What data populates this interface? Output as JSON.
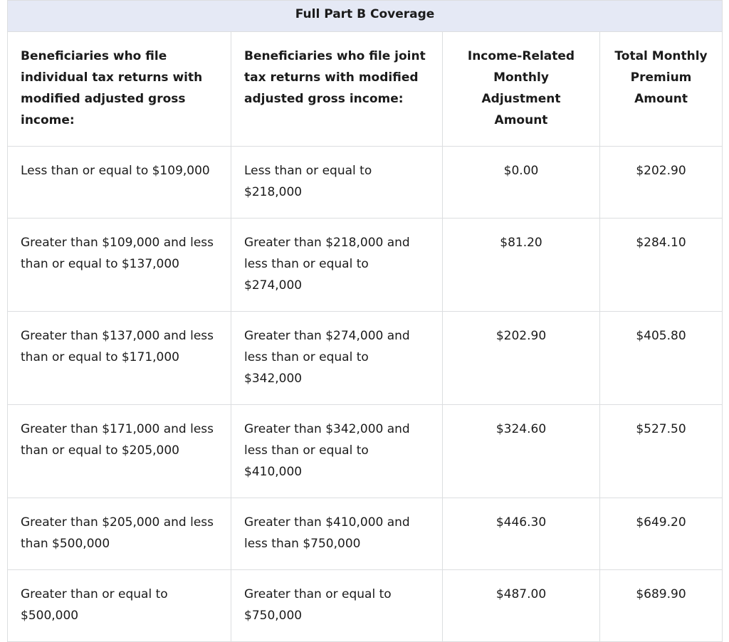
{
  "table": {
    "title": "Full Part B Coverage",
    "headers": [
      "Beneficiaries who file individual tax returns with modified adjusted gross income:",
      "Beneficiaries who file joint tax returns with modified adjusted gross income:",
      "Income-Related Monthly Adjustment Amount",
      "Total Monthly Premium Amount"
    ],
    "rows": [
      [
        "Less than or equal to $109,000",
        "Less than or equal to $218,000",
        "$0.00",
        "$202.90"
      ],
      [
        "Greater than $109,000 and less than or equal to $137,000",
        "Greater than $218,000 and less than or equal to $274,000",
        "$81.20",
        "$284.10"
      ],
      [
        "Greater than $137,000 and less than or equal to $171,000",
        "Greater than $274,000 and less than or equal to $342,000",
        "$202.90",
        "$405.80"
      ],
      [
        "Greater than $171,000 and less than or equal to $205,000",
        "Greater than $342,000 and less than or equal to $410,000",
        "$324.60",
        "$527.50"
      ],
      [
        "Greater than $205,000 and less than $500,000",
        "Greater than $410,000 and less than $750,000",
        "$446.30",
        "$649.20"
      ],
      [
        "Greater than or equal to $500,000",
        "Greater than or equal to $750,000",
        "$487.00",
        "$689.90"
      ]
    ]
  }
}
